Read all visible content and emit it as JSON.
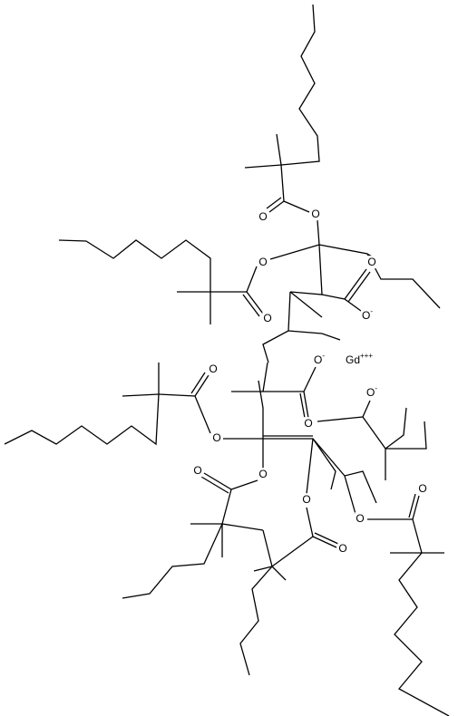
{
  "atoms": [
    {
      "label": "O"
    },
    {
      "label": "O"
    },
    {
      "label": "O"
    },
    {
      "label": "O"
    },
    {
      "label": "O"
    },
    {
      "label": "O",
      "charge": "-"
    },
    {
      "label": "Gd",
      "charge": "+++"
    },
    {
      "label": "O",
      "charge": "-"
    },
    {
      "label": "O"
    },
    {
      "label": "O",
      "charge": "-"
    },
    {
      "label": "O"
    },
    {
      "label": "O"
    },
    {
      "label": "O"
    },
    {
      "label": "O"
    },
    {
      "label": "O"
    },
    {
      "label": "O"
    },
    {
      "label": "O"
    },
    {
      "label": "O"
    }
  ]
}
